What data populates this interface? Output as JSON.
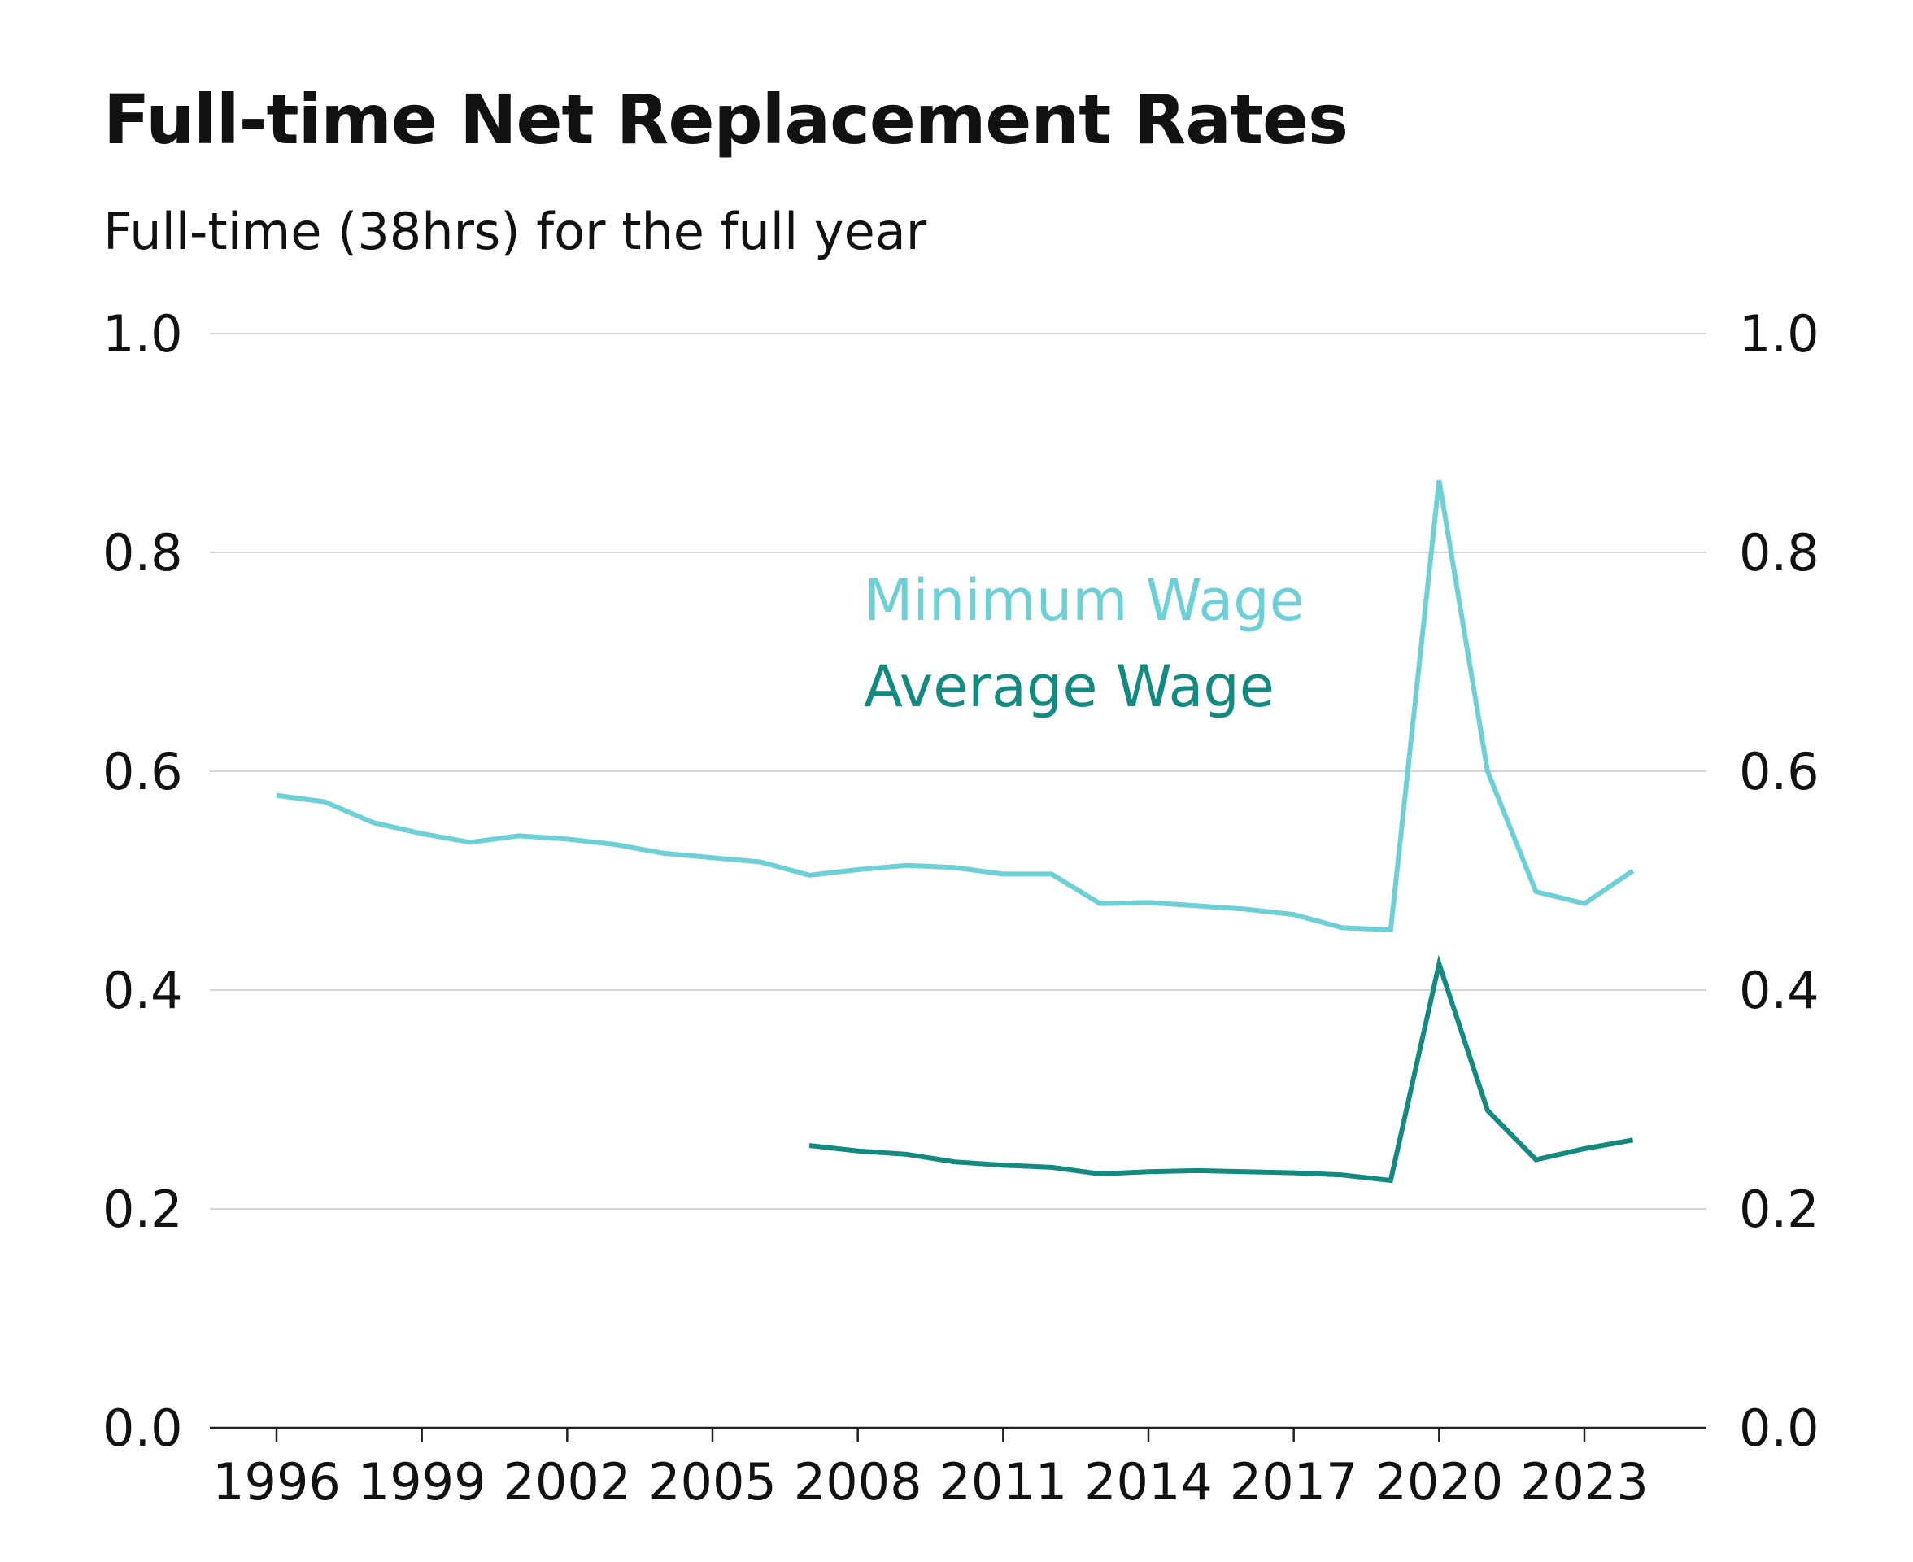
{
  "title": "Full-time Net Replacement Rates",
  "subtitle": "Full-time (38hrs) for the full year",
  "chart_data": {
    "type": "line",
    "title": "Full-time Net Replacement Rates",
    "subtitle": "Full-time (38hrs) for the full year",
    "xlabel": "",
    "ylabel": "",
    "xlim": [
      1994.6,
      2025.4
    ],
    "ylim": [
      0,
      1
    ],
    "x_ticks": [
      1996,
      1999,
      2002,
      2005,
      2008,
      2011,
      2014,
      2017,
      2020,
      2023
    ],
    "y_ticks": [
      0.0,
      0.2,
      0.4,
      0.6,
      0.8,
      1.0
    ],
    "y_tick_labels": [
      "0.0",
      "0.2",
      "0.4",
      "0.6",
      "0.8",
      "1.0"
    ],
    "y_axes": [
      "left",
      "right"
    ],
    "grid": true,
    "legend": "inline labels, upper middle",
    "series": [
      {
        "name": "Minimum Wage",
        "color": "#6cd0d6",
        "x": [
          1996,
          1997,
          1998,
          1999,
          2000,
          2001,
          2002,
          2003,
          2004,
          2005,
          2006,
          2007,
          2008,
          2009,
          2010,
          2011,
          2012,
          2013,
          2014,
          2015,
          2016,
          2017,
          2018,
          2019,
          2020,
          2021,
          2022,
          2023,
          2024
        ],
        "values": [
          0.578,
          0.572,
          0.553,
          0.543,
          0.535,
          0.541,
          0.538,
          0.533,
          0.525,
          0.521,
          0.517,
          0.505,
          0.51,
          0.514,
          0.512,
          0.506,
          0.506,
          0.479,
          0.48,
          0.477,
          0.474,
          0.469,
          0.457,
          0.455,
          0.866,
          0.6,
          0.49,
          0.479,
          0.509
        ]
      },
      {
        "name": "Average Wage",
        "color": "#138a80",
        "x": [
          2007,
          2008,
          2009,
          2010,
          2011,
          2012,
          2013,
          2014,
          2015,
          2016,
          2017,
          2018,
          2019,
          2020,
          2021,
          2022,
          2023,
          2024
        ],
        "values": [
          0.258,
          0.253,
          0.25,
          0.243,
          0.24,
          0.238,
          0.232,
          0.234,
          0.235,
          0.234,
          0.233,
          0.231,
          0.226,
          0.424,
          0.29,
          0.245,
          0.255,
          0.263
        ]
      }
    ]
  }
}
